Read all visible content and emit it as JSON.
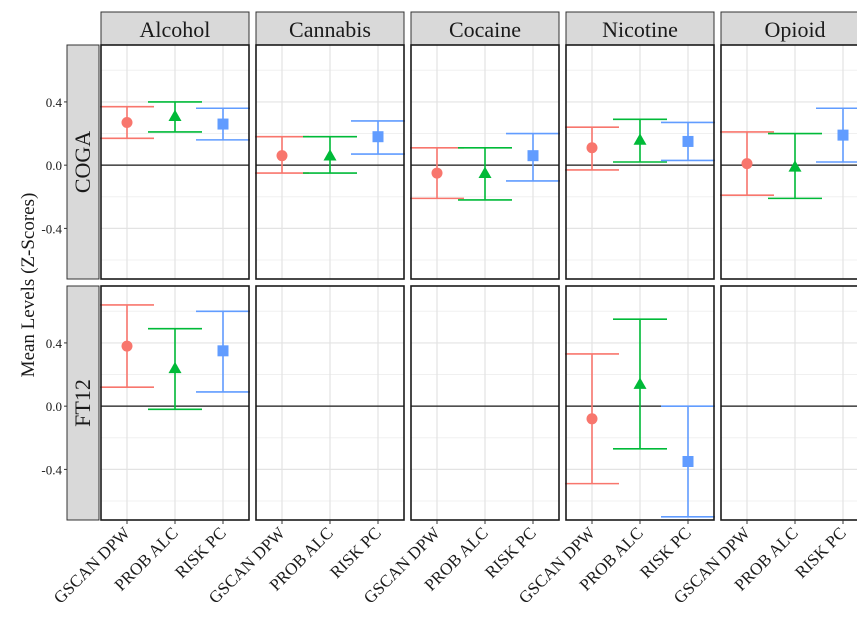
{
  "chart_data": {
    "type": "scatter",
    "subtype": "point-range faceted grid",
    "ylabel": "Mean Levels (Z-Scores)",
    "ylim": [
      -0.72,
      0.76
    ],
    "y_ticks": [
      -0.4,
      0.0,
      0.4
    ],
    "y_tick_labels": [
      "-0.4",
      "0.0",
      "0.4"
    ],
    "reference_line_y": 0.0,
    "grid": true,
    "legend": "none",
    "columns": [
      "Alcohol",
      "Cannabis",
      "Cocaine",
      "Nicotine",
      "Opioid"
    ],
    "rows": [
      "COGA",
      "FT12"
    ],
    "categories": [
      "GSCAN DPW",
      "PROB ALC",
      "RISK PC"
    ],
    "series": [
      {
        "name": "GSCAN DPW",
        "color": "#F8766D",
        "shape": "circle"
      },
      {
        "name": "PROB ALC",
        "color": "#00BA38",
        "shape": "triangle"
      },
      {
        "name": "RISK PC",
        "color": "#619CFF",
        "shape": "square"
      }
    ],
    "panels": [
      {
        "row": "COGA",
        "column": "Alcohol",
        "points": [
          {
            "x": "GSCAN DPW",
            "y": 0.27,
            "low": 0.17,
            "high": 0.37
          },
          {
            "x": "PROB ALC",
            "y": 0.31,
            "low": 0.21,
            "high": 0.4
          },
          {
            "x": "RISK PC",
            "y": 0.26,
            "low": 0.16,
            "high": 0.36
          }
        ]
      },
      {
        "row": "COGA",
        "column": "Cannabis",
        "points": [
          {
            "x": "GSCAN DPW",
            "y": 0.06,
            "low": -0.05,
            "high": 0.18
          },
          {
            "x": "PROB ALC",
            "y": 0.06,
            "low": -0.05,
            "high": 0.18
          },
          {
            "x": "RISK PC",
            "y": 0.18,
            "low": 0.07,
            "high": 0.28
          }
        ]
      },
      {
        "row": "COGA",
        "column": "Cocaine",
        "points": [
          {
            "x": "GSCAN DPW",
            "y": -0.05,
            "low": -0.21,
            "high": 0.11
          },
          {
            "x": "PROB ALC",
            "y": -0.05,
            "low": -0.22,
            "high": 0.11
          },
          {
            "x": "RISK PC",
            "y": 0.06,
            "low": -0.1,
            "high": 0.2
          }
        ]
      },
      {
        "row": "COGA",
        "column": "Nicotine",
        "points": [
          {
            "x": "GSCAN DPW",
            "y": 0.11,
            "low": -0.03,
            "high": 0.24
          },
          {
            "x": "PROB ALC",
            "y": 0.16,
            "low": 0.02,
            "high": 0.29
          },
          {
            "x": "RISK PC",
            "y": 0.15,
            "low": 0.03,
            "high": 0.27
          }
        ]
      },
      {
        "row": "COGA",
        "column": "Opioid",
        "points": [
          {
            "x": "GSCAN DPW",
            "y": 0.01,
            "low": -0.19,
            "high": 0.21
          },
          {
            "x": "PROB ALC",
            "y": -0.01,
            "low": -0.21,
            "high": 0.2
          },
          {
            "x": "RISK PC",
            "y": 0.19,
            "low": 0.02,
            "high": 0.36
          }
        ]
      },
      {
        "row": "FT12",
        "column": "Alcohol",
        "points": [
          {
            "x": "GSCAN DPW",
            "y": 0.38,
            "low": 0.12,
            "high": 0.64
          },
          {
            "x": "PROB ALC",
            "y": 0.24,
            "low": -0.02,
            "high": 0.49
          },
          {
            "x": "RISK PC",
            "y": 0.35,
            "low": 0.09,
            "high": 0.6
          }
        ]
      },
      {
        "row": "FT12",
        "column": "Cannabis",
        "points": []
      },
      {
        "row": "FT12",
        "column": "Cocaine",
        "points": []
      },
      {
        "row": "FT12",
        "column": "Nicotine",
        "points": [
          {
            "x": "GSCAN DPW",
            "y": -0.08,
            "low": -0.49,
            "high": 0.33
          },
          {
            "x": "PROB ALC",
            "y": 0.14,
            "low": -0.27,
            "high": 0.55
          },
          {
            "x": "RISK PC",
            "y": -0.35,
            "low": -0.7,
            "high": 0.0
          }
        ]
      },
      {
        "row": "FT12",
        "column": "Opioid",
        "points": []
      }
    ]
  }
}
